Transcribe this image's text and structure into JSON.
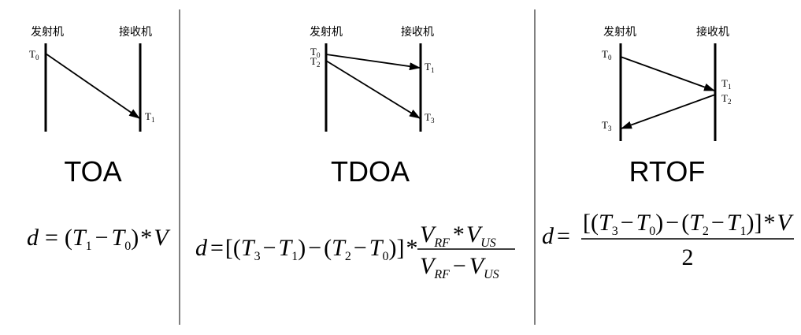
{
  "roles": {
    "transmitter": "发射机",
    "receiver": "接收机"
  },
  "panels": [
    {
      "method": "TOA",
      "labels": [
        {
          "base": "T",
          "sub": "0"
        },
        {
          "base": "T",
          "sub": "1"
        }
      ]
    },
    {
      "method": "TDOA",
      "labels": [
        {
          "base": "T",
          "sub": "0"
        },
        {
          "base": "T",
          "sub": "2"
        },
        {
          "base": "T",
          "sub": "1"
        },
        {
          "base": "T",
          "sub": "3"
        }
      ]
    },
    {
      "method": "RTOF",
      "labels": [
        {
          "base": "T",
          "sub": "0"
        },
        {
          "base": "T",
          "sub": "1"
        },
        {
          "base": "T",
          "sub": "2"
        },
        {
          "base": "T",
          "sub": "3"
        }
      ]
    }
  ],
  "formulas": {
    "toa": "d = (T1 − T0) * V",
    "tdoa": "d = [(T3 − T1) − (T2 − T0)] * (VRF * VUS) / (VRF − VUS)",
    "rtof": "d = [(T3 − T0) − (T2 − T1)] * V / 2"
  },
  "sym": {
    "d": "d",
    "eq": "=",
    "T": "T",
    "V": "V",
    "minus": "−",
    "star": "*",
    "lp": "(",
    "rp": ")",
    "lb": "[",
    "rb": "]",
    "s0": "0",
    "s1": "1",
    "s2": "2",
    "s3": "3",
    "RF": "RF",
    "US": "US",
    "two": "2"
  }
}
